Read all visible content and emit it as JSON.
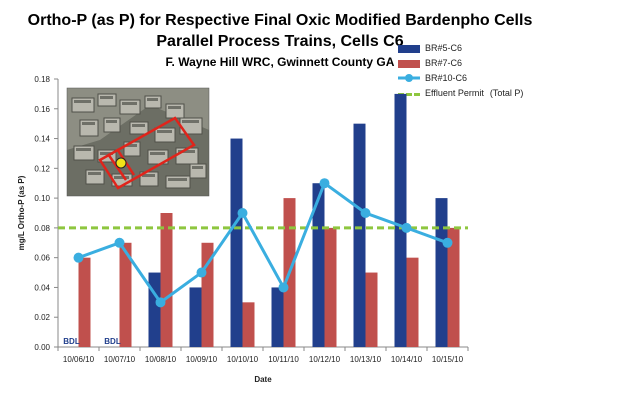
{
  "chart_data": {
    "type": "bar",
    "title": "Ortho-P (as P) for Respective Final Oxic Modified Bardenpho Cells",
    "subtitle": "Parallel Process Trains, Cells C6",
    "subtitle2": "F. Wayne Hill WRC, Gwinnett County GA",
    "xlabel": "Date",
    "ylabel": "mg/L Ortho-P (as P)",
    "ylim": [
      0,
      0.18
    ],
    "yticks": [
      "0.00",
      "0.02",
      "0.04",
      "0.06",
      "0.08",
      "0.10",
      "0.12",
      "0.14",
      "0.16",
      "0.18"
    ],
    "categories": [
      "10/06/10",
      "10/07/10",
      "10/08/10",
      "10/09/10",
      "10/10/10",
      "10/11/10",
      "10/12/10",
      "10/13/10",
      "10/14/10",
      "10/15/10"
    ],
    "series": [
      {
        "name": "BR#5-C6",
        "kind": "bar",
        "color": "#213f8c",
        "values": [
          null,
          null,
          0.05,
          0.04,
          0.14,
          0.04,
          0.11,
          0.15,
          0.17,
          0.1
        ]
      },
      {
        "name": "BR#7-C6",
        "kind": "bar",
        "color": "#c0504d",
        "values": [
          0.06,
          0.07,
          0.09,
          0.07,
          0.03,
          0.1,
          0.08,
          0.05,
          0.06,
          0.08
        ]
      },
      {
        "name": "BR#10-C6",
        "kind": "line",
        "color": "#3aaee0",
        "values": [
          0.06,
          0.07,
          0.03,
          0.05,
          0.09,
          0.04,
          0.11,
          0.09,
          0.08,
          0.07
        ]
      },
      {
        "name": "Effluent Permit",
        "note": "(Total P)",
        "kind": "hline",
        "color": "#8ec63f",
        "value": 0.08
      }
    ],
    "annotations": [
      {
        "text": "BDL",
        "category": "10/06/10",
        "series": "BR#5-C6"
      },
      {
        "text": "BDL",
        "category": "10/07/10",
        "series": "BR#5-C6"
      }
    ],
    "grid": false,
    "legend": "top-right",
    "inset_image": "aerial-photo-of-treatment-plant"
  }
}
